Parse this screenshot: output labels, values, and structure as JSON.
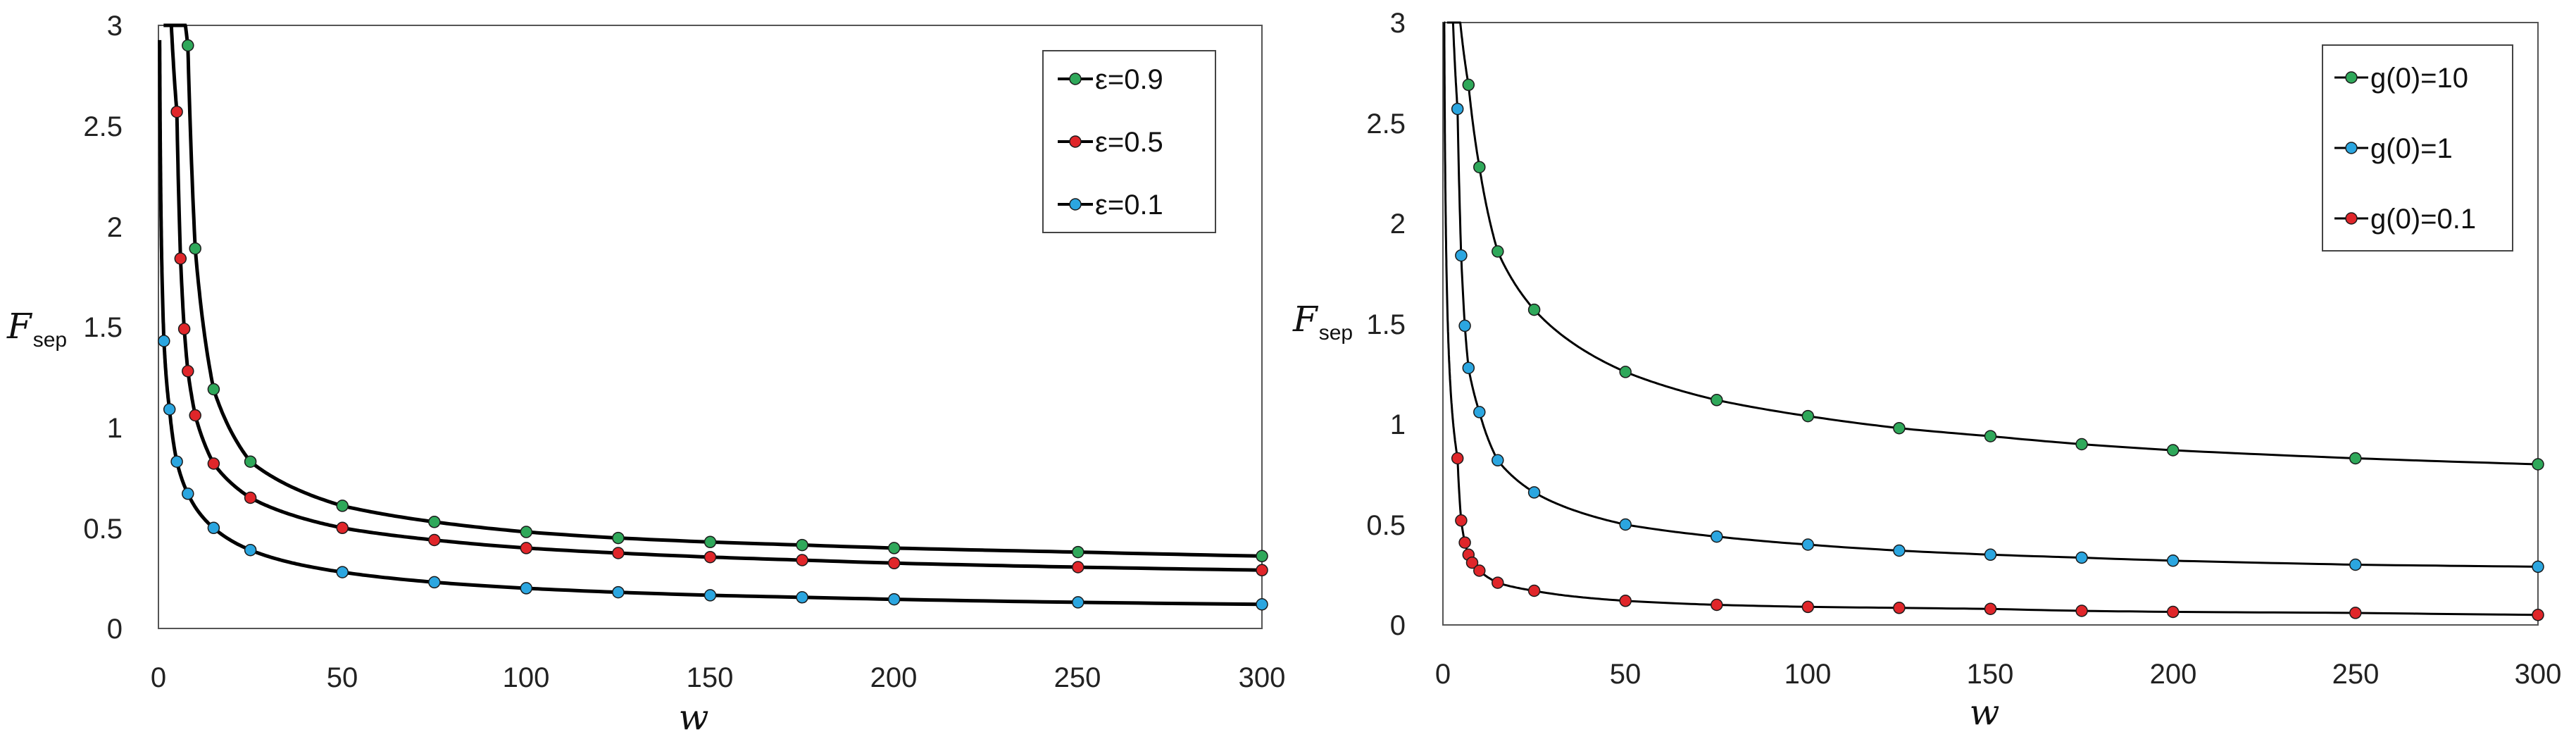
{
  "chart_data": [
    {
      "type": "line",
      "xlabel": "w",
      "ylabel": "F",
      "ylabel_sub": "sep",
      "xlim": [
        0,
        300
      ],
      "ylim": [
        0,
        3
      ],
      "xticks": [
        0,
        50,
        100,
        150,
        200,
        250,
        300
      ],
      "yticks": [
        0,
        0.5,
        1,
        1.5,
        2,
        2.5,
        3
      ],
      "ytick_labels": [
        "0",
        "0.5",
        "1",
        "1.5",
        "2",
        "2.5",
        "3"
      ],
      "legend_position": "top-right",
      "series": [
        {
          "name": "ε=0.9",
          "color": "#2fa85a",
          "x": [
            8,
            10,
            15,
            25,
            50,
            75,
            100,
            125,
            150,
            175,
            200,
            250,
            300
          ],
          "y": [
            2.9,
            1.89,
            1.19,
            0.83,
            0.61,
            0.53,
            0.48,
            0.45,
            0.43,
            0.415,
            0.4,
            0.38,
            0.36
          ]
        },
        {
          "name": "ε=0.5",
          "color": "#e0262a",
          "x": [
            5,
            6,
            7,
            8,
            10,
            15,
            25,
            50,
            75,
            100,
            125,
            150,
            175,
            200,
            250,
            300
          ],
          "y": [
            2.57,
            1.84,
            1.49,
            1.28,
            1.06,
            0.82,
            0.65,
            0.5,
            0.44,
            0.4,
            0.375,
            0.355,
            0.34,
            0.325,
            0.305,
            0.29
          ]
        },
        {
          "name": "ε=0.1",
          "color": "#2ba6e0",
          "x": [
            1.5,
            3,
            5,
            8,
            15,
            25,
            50,
            75,
            100,
            125,
            150,
            175,
            200,
            250,
            300
          ],
          "y": [
            1.43,
            1.09,
            0.83,
            0.67,
            0.5,
            0.39,
            0.28,
            0.23,
            0.2,
            0.18,
            0.165,
            0.155,
            0.145,
            0.13,
            0.12
          ]
        }
      ]
    },
    {
      "type": "line",
      "xlabel": "w",
      "ylabel": "F",
      "ylabel_sub": "sep",
      "xlim": [
        0,
        300
      ],
      "ylim": [
        0,
        3
      ],
      "xticks": [
        0,
        50,
        100,
        150,
        200,
        250,
        300
      ],
      "yticks": [
        0,
        0.5,
        1,
        1.5,
        2,
        2.5,
        3
      ],
      "ytick_labels": [
        "0",
        "0.5",
        "1",
        "1.5",
        "2",
        "2.5",
        "3"
      ],
      "legend_position": "top-right",
      "series": [
        {
          "name": "g(0)=10",
          "color": "#2fa85a",
          "x": [
            7,
            10,
            15,
            25,
            50,
            75,
            100,
            125,
            150,
            175,
            200,
            250,
            300
          ],
          "y": [
            2.69,
            2.28,
            1.86,
            1.57,
            1.26,
            1.12,
            1.04,
            0.98,
            0.94,
            0.9,
            0.87,
            0.83,
            0.8
          ]
        },
        {
          "name": "g(0)=1",
          "color": "#2ba6e0",
          "x": [
            4,
            5,
            6,
            7,
            10,
            15,
            25,
            50,
            75,
            100,
            125,
            150,
            175,
            200,
            250,
            300
          ],
          "y": [
            2.57,
            1.84,
            1.49,
            1.28,
            1.06,
            0.82,
            0.66,
            0.5,
            0.44,
            0.4,
            0.37,
            0.35,
            0.335,
            0.32,
            0.3,
            0.29
          ]
        },
        {
          "name": "g(0)=0.1",
          "color": "#e0262a",
          "x": [
            4,
            5,
            6,
            7,
            8,
            10,
            15,
            25,
            50,
            75,
            100,
            125,
            150,
            175,
            200,
            250,
            300
          ],
          "y": [
            0.83,
            0.52,
            0.41,
            0.35,
            0.31,
            0.27,
            0.21,
            0.17,
            0.12,
            0.1,
            0.09,
            0.085,
            0.08,
            0.07,
            0.065,
            0.06,
            0.05
          ]
        }
      ]
    }
  ]
}
